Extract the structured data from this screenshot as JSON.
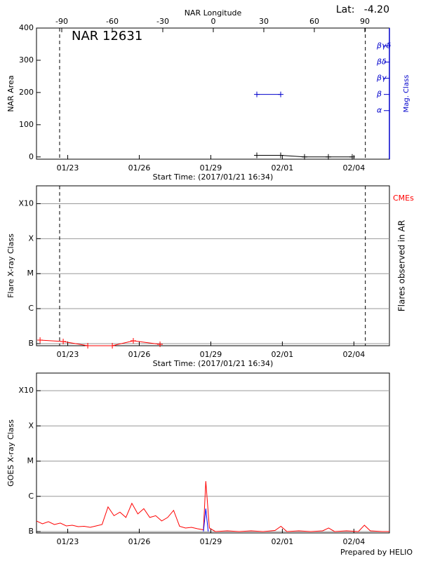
{
  "chart_data": [
    {
      "type": "line",
      "title": "NAR 12631",
      "annotation": "Lat:   -4.20",
      "x2label": "NAR Longitude",
      "ylabel": "NAR Area",
      "y2label": "Mag. Class",
      "xlabel": "Start Time: (2017/01/21 16:34)",
      "xlim": [
        0,
        14.8
      ],
      "xticks": [
        {
          "value": 1.31,
          "label": "01/23"
        },
        {
          "value": 4.31,
          "label": "01/26"
        },
        {
          "value": 7.31,
          "label": "01/29"
        },
        {
          "value": 10.31,
          "label": "02/01"
        },
        {
          "value": 13.31,
          "label": "02/04"
        }
      ],
      "x2lim": [
        -105,
        104.6
      ],
      "x2ticks": [
        -90,
        -60,
        -30,
        0,
        30,
        60,
        90
      ],
      "ylim": [
        -7,
        400
      ],
      "yticks": [
        0,
        100,
        200,
        300,
        400
      ],
      "y2lim": [
        0,
        8.1
      ],
      "y2ticks": [
        {
          "value": 3,
          "label": "α"
        },
        {
          "value": 4,
          "label": "β"
        },
        {
          "value": 5,
          "label": "βγ"
        },
        {
          "value": 6,
          "label": "βδ"
        },
        {
          "value": 7,
          "label": "βγδ"
        }
      ],
      "y2color": "#0000cc",
      "limb_lines": [
        0.97,
        13.79
      ],
      "grid": false,
      "series": [
        {
          "color": "#000000",
          "x": [
            9.24,
            10.24,
            11.24,
            12.24,
            13.24
          ],
          "values": [
            5,
            5,
            0,
            0,
            0
          ],
          "markers": true
        },
        {
          "color": "#0000cc",
          "axis": "y2",
          "x": [
            9.24,
            10.24
          ],
          "values": [
            4,
            4
          ],
          "markers": true
        }
      ]
    },
    {
      "type": "line",
      "ylabel": "Flare X-ray Class",
      "y2label": "Flares observed in AR",
      "cme_label": "CMEs",
      "xlabel": "Start Time: (2017/01/21 16:34)",
      "xlim": [
        0,
        14.8
      ],
      "xticks": [
        {
          "value": 1.31,
          "label": "01/23"
        },
        {
          "value": 4.31,
          "label": "01/26"
        },
        {
          "value": 7.31,
          "label": "01/29"
        },
        {
          "value": 10.31,
          "label": "02/01"
        },
        {
          "value": 13.31,
          "label": "02/04"
        }
      ],
      "ylim": [
        -7.06,
        -2.49
      ],
      "yticks": [
        {
          "value": -7,
          "label": "B"
        },
        {
          "value": -6,
          "label": "C"
        },
        {
          "value": -5,
          "label": "M"
        },
        {
          "value": -4,
          "label": "X"
        },
        {
          "value": -3,
          "label": "X10"
        }
      ],
      "limb_lines": [
        0.97,
        13.79
      ],
      "grid": true,
      "series": [
        {
          "color": "#ff0000",
          "x": [
            0.15,
            1.12,
            2.15,
            3.18,
            4.06,
            5.18
          ],
          "values": [
            -6.9,
            -6.94,
            -7.06,
            -7.06,
            -6.92,
            -7.02
          ],
          "markers": true
        }
      ]
    },
    {
      "type": "line",
      "ylabel": "GOES X-ray Class",
      "footer": "Prepared by HELIO",
      "xlim": [
        0,
        14.8
      ],
      "xticks": [
        {
          "value": 1.31,
          "label": "01/23"
        },
        {
          "value": 4.31,
          "label": "01/26"
        },
        {
          "value": 7.31,
          "label": "01/29"
        },
        {
          "value": 10.31,
          "label": "02/01"
        },
        {
          "value": 13.31,
          "label": "02/04"
        }
      ],
      "ylim": [
        -7.04,
        -2.5
      ],
      "yticks": [
        {
          "value": -7,
          "label": "B"
        },
        {
          "value": -6,
          "label": "C"
        },
        {
          "value": -5,
          "label": "M"
        },
        {
          "value": -4,
          "label": "X"
        },
        {
          "value": -3,
          "label": "X10"
        }
      ],
      "grid": true,
      "series": [
        {
          "color": "#ff0000",
          "x": [
            0,
            0.25,
            0.5,
            0.75,
            1.0,
            1.25,
            1.5,
            1.75,
            2.0,
            2.25,
            2.5,
            2.75,
            3.0,
            3.25,
            3.5,
            3.75,
            4.0,
            4.25,
            4.5,
            4.75,
            5.0,
            5.25,
            5.5,
            5.75,
            6.0,
            6.25,
            6.5,
            6.75,
            7.0,
            7.1,
            7.25,
            7.5,
            8.0,
            8.5,
            9.0,
            9.5,
            10.0,
            10.25,
            10.5,
            11.0,
            11.5,
            12.0,
            12.25,
            12.5,
            13.0,
            13.5,
            13.75,
            14.0,
            14.5,
            14.8
          ],
          "values": [
            -6.7,
            -6.78,
            -6.72,
            -6.8,
            -6.76,
            -6.84,
            -6.82,
            -6.86,
            -6.85,
            -6.88,
            -6.84,
            -6.8,
            -6.3,
            -6.55,
            -6.45,
            -6.6,
            -6.2,
            -6.5,
            -6.35,
            -6.6,
            -6.55,
            -6.7,
            -6.6,
            -6.4,
            -6.85,
            -6.9,
            -6.88,
            -6.92,
            -6.95,
            -5.57,
            -6.9,
            -7.0,
            -6.98,
            -7.0,
            -6.98,
            -7.0,
            -6.97,
            -6.85,
            -7.0,
            -6.98,
            -7.0,
            -6.98,
            -6.9,
            -7.0,
            -6.98,
            -7.0,
            -6.82,
            -6.98,
            -7.0,
            -7.0
          ]
        },
        {
          "color": "#0000ff",
          "x": [
            7.0,
            7.1,
            7.2
          ],
          "values": [
            -7.0,
            -6.35,
            -7.0
          ]
        }
      ]
    }
  ]
}
